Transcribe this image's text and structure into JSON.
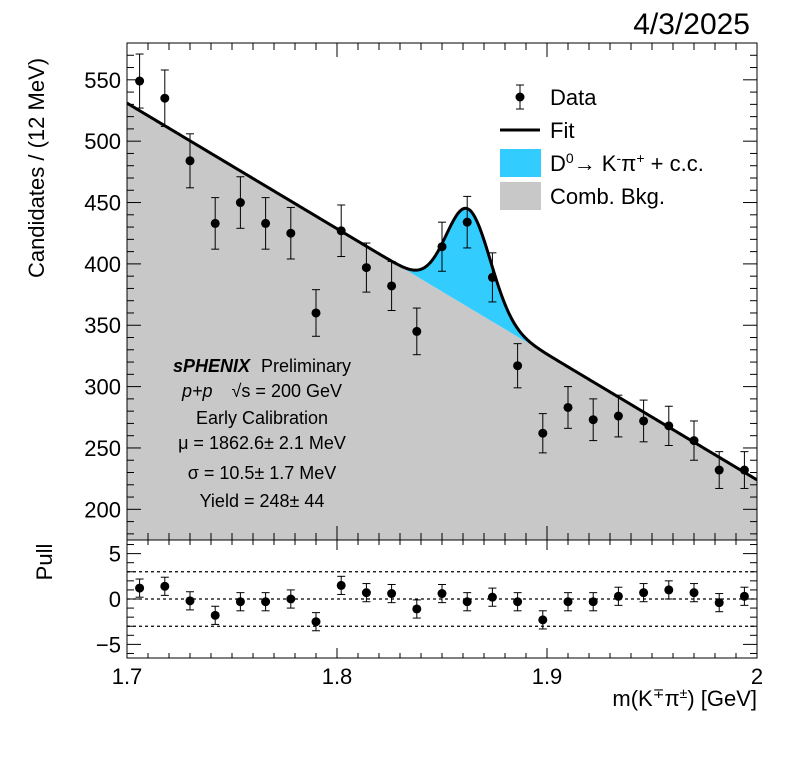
{
  "date_stamp": "4/3/2025",
  "chart_data": [
    {
      "panel": "main",
      "type": "scatter",
      "ylabel": "Candidates / (12 MeV)",
      "ylim": [
        175,
        580
      ],
      "xlim": [
        1.7,
        2.0
      ],
      "y_ticks": [
        200,
        250,
        300,
        350,
        400,
        450,
        500,
        550
      ],
      "series": [
        {
          "name": "Data",
          "x": [
            1.706,
            1.718,
            1.73,
            1.742,
            1.754,
            1.766,
            1.778,
            1.79,
            1.802,
            1.814,
            1.826,
            1.838,
            1.85,
            1.862,
            1.874,
            1.886,
            1.898,
            1.91,
            1.922,
            1.934,
            1.946,
            1.958,
            1.97,
            1.982,
            1.994
          ],
          "y": [
            549,
            535,
            484,
            433,
            450,
            433,
            425,
            360,
            427,
            397,
            382,
            345,
            414,
            434,
            389,
            317,
            262,
            283,
            273,
            276,
            272,
            268,
            256,
            232,
            232
          ],
          "err": [
            22,
            23,
            22,
            21,
            21,
            21,
            21,
            19,
            21,
            20,
            20,
            19,
            20,
            21,
            20,
            18,
            16,
            17,
            17,
            17,
            17,
            16,
            16,
            15,
            15
          ]
        },
        {
          "name": "Fit",
          "background": {
            "x": [
              1.7,
              2.0
            ],
            "y": [
              531,
              224
            ]
          },
          "signal": {
            "mean": 1.8626,
            "sigma": 0.0105,
            "peak_height": 80
          }
        }
      ],
      "legend": {
        "placement": "top-right",
        "entries": [
          {
            "label_html": "Data",
            "style": "marker",
            "color": "#000000"
          },
          {
            "label_html": "Fit",
            "style": "line",
            "color": "#000000"
          },
          {
            "label_html": "D<tspan baseline-shift='super' font-size='14'>0</tspan>→ K<tspan baseline-shift='super' font-size='14'>-</tspan>π<tspan baseline-shift='super' font-size='14'>+</tspan> + c.c.",
            "style": "fill",
            "color": "#33ccff"
          },
          {
            "label_html": "Comb. Bkg.",
            "style": "fill",
            "color": "#c8c8c8"
          }
        ]
      },
      "annotation": {
        "experiment": "sPHENIX",
        "status": "Preliminary",
        "collision": "p+p",
        "energy_label": "√s = 200 GeV",
        "calibration": "Early Calibration",
        "mu": "μ = 1862.6± 2.1 MeV",
        "sigma": "σ = 10.5± 1.7 MeV",
        "yield": "Yield = 248± 44"
      }
    },
    {
      "panel": "pull",
      "type": "scatter",
      "ylabel": "Pull",
      "ylim": [
        -6.5,
        6.5
      ],
      "y_ticks": [
        5,
        0,
        -5
      ],
      "reference_lines": [
        3,
        0,
        -3
      ],
      "xlabel": "m(K∓π±) [GeV]",
      "x_ticks": [
        "1.7",
        "1.8",
        "1.9",
        "2"
      ],
      "series": [
        {
          "name": "Pull",
          "x": [
            1.706,
            1.718,
            1.73,
            1.742,
            1.754,
            1.766,
            1.778,
            1.79,
            1.802,
            1.814,
            1.826,
            1.838,
            1.85,
            1.862,
            1.874,
            1.886,
            1.898,
            1.91,
            1.922,
            1.934,
            1.946,
            1.958,
            1.97,
            1.982,
            1.994
          ],
          "y": [
            1.2,
            1.4,
            -0.2,
            -1.8,
            -0.3,
            -0.3,
            0.0,
            -2.5,
            1.5,
            0.7,
            0.6,
            -1.1,
            0.6,
            -0.3,
            0.2,
            -0.3,
            -2.3,
            -0.3,
            -0.3,
            0.3,
            0.7,
            1.0,
            0.7,
            -0.4,
            0.3
          ],
          "err": [
            1,
            1,
            1,
            1,
            1,
            1,
            1,
            1,
            1,
            1,
            1,
            1,
            1,
            1,
            1,
            1,
            1,
            1,
            1,
            1,
            1,
            1,
            1,
            1,
            1
          ]
        }
      ]
    }
  ]
}
